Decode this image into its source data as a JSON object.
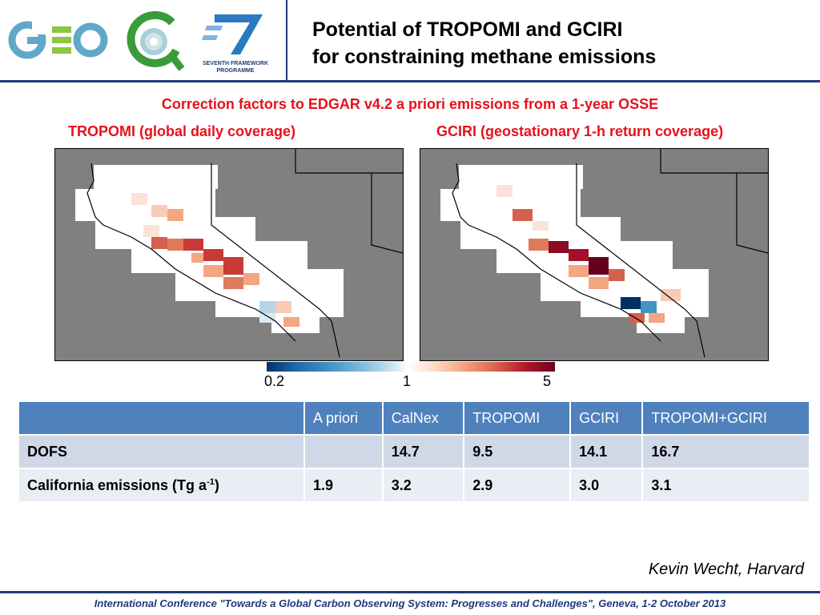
{
  "header": {
    "logos": [
      "geo-logo",
      "gcos-ring-logo",
      "seventh-framework-programme-logo"
    ],
    "fp7_text_line1": "SEVENTH FRAMEWORK",
    "fp7_text_line2": "PROGRAMME",
    "title_line1": "Potential of TROPOMI and GCIRI",
    "title_line2": "for constraining methane emissions",
    "accent_color": "#1f3a7a"
  },
  "subtitle": "Correction factors to EDGAR v4.2 a priori emissions from a 1-year OSSE",
  "maps": [
    {
      "label": "TROPOMI (global daily coverage)"
    },
    {
      "label": "GCIRI (geostationary 1-h return coverage)"
    }
  ],
  "colorbar": {
    "ticks": [
      "0.2",
      "1",
      "5"
    ],
    "low_color": "#053061",
    "mid_color": "#ffffff",
    "high_color": "#67001f"
  },
  "table": {
    "headers": [
      "",
      "A priori",
      "CalNex",
      "TROPOMI",
      "GCIRI",
      "TROPOMI+GCIRI"
    ],
    "rows": [
      {
        "label": "DOFS",
        "cells": [
          "",
          "14.7",
          "9.5",
          "14.1",
          "16.7"
        ]
      },
      {
        "label_main": "California emissions (Tg a",
        "label_sup": "-1",
        "label_end": ")",
        "cells": [
          "1.9",
          "3.2",
          "2.9",
          "3.0",
          "3.1"
        ]
      }
    ]
  },
  "credit": "Kevin Wecht, Harvard",
  "footer": "International Conference \"Towards a Global Carbon Observing System: Progresses and Challenges\", Geneva, 1-2 October 2013"
}
